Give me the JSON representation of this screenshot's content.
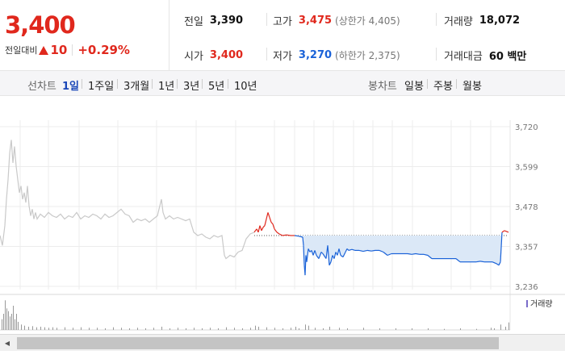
{
  "summary": {
    "price": "3,400",
    "change_label": "전일대비",
    "change_amount": "10",
    "change_percent": "+0.29%",
    "prev_close": {
      "label": "전일",
      "value": "3,390"
    },
    "open": {
      "label": "시가",
      "value": "3,400"
    },
    "high": {
      "label": "고가",
      "value": "3,475",
      "sub": "(상한가 4,405)"
    },
    "low": {
      "label": "저가",
      "value": "3,270",
      "sub": "(하한가 2,375)"
    },
    "volume": {
      "label": "거래량",
      "value": "18,072"
    },
    "amount": {
      "label": "거래대금",
      "value": "60 백만"
    }
  },
  "period_bar": {
    "line_label": "선차트",
    "line_periods": [
      "1일",
      "1주일",
      "3개월",
      "1년",
      "3년",
      "5년",
      "10년"
    ],
    "active": "1일",
    "candle_label": "봉차트",
    "candle_periods": [
      "일봉",
      "주봉",
      "월봉"
    ]
  },
  "colors": {
    "up": "#e0281d",
    "down": "#1a62d8",
    "prev_day_line": "#c9c9c9",
    "down_fill": "#dbe8f7"
  },
  "chart_data": {
    "type": "line",
    "y_ticks": [
      "3,720",
      "3,599",
      "3,478",
      "3,357",
      "3,236"
    ],
    "ylim": [
      3236,
      3720
    ],
    "reference_price": 3390,
    "grid": true,
    "legend": "거래량",
    "prev_day_series": [
      [
        0,
        3390
      ],
      [
        3,
        3360
      ],
      [
        6,
        3420
      ],
      [
        8,
        3500
      ],
      [
        10,
        3560
      ],
      [
        12,
        3640
      ],
      [
        14,
        3680
      ],
      [
        16,
        3610
      ],
      [
        18,
        3660
      ],
      [
        20,
        3600
      ],
      [
        22,
        3560
      ],
      [
        24,
        3520
      ],
      [
        26,
        3540
      ],
      [
        28,
        3500
      ],
      [
        30,
        3520
      ],
      [
        32,
        3490
      ],
      [
        34,
        3540
      ],
      [
        36,
        3480
      ],
      [
        38,
        3450
      ],
      [
        40,
        3470
      ],
      [
        42,
        3440
      ],
      [
        44,
        3460
      ],
      [
        46,
        3440
      ],
      [
        50,
        3455
      ],
      [
        55,
        3445
      ],
      [
        60,
        3460
      ],
      [
        65,
        3450
      ],
      [
        70,
        3445
      ],
      [
        75,
        3455
      ],
      [
        80,
        3440
      ],
      [
        85,
        3450
      ],
      [
        90,
        3445
      ],
      [
        95,
        3460
      ],
      [
        100,
        3440
      ],
      [
        105,
        3450
      ],
      [
        110,
        3445
      ],
      [
        115,
        3455
      ],
      [
        120,
        3450
      ],
      [
        125,
        3440
      ],
      [
        130,
        3455
      ],
      [
        135,
        3445
      ],
      [
        140,
        3450
      ],
      [
        145,
        3460
      ],
      [
        150,
        3470
      ],
      [
        155,
        3455
      ],
      [
        160,
        3450
      ],
      [
        165,
        3430
      ],
      [
        170,
        3440
      ],
      [
        175,
        3435
      ],
      [
        180,
        3440
      ],
      [
        185,
        3430
      ],
      [
        190,
        3440
      ],
      [
        195,
        3450
      ],
      [
        198,
        3480
      ],
      [
        200,
        3500
      ],
      [
        202,
        3460
      ],
      [
        205,
        3440
      ],
      [
        210,
        3450
      ],
      [
        215,
        3440
      ],
      [
        220,
        3445
      ],
      [
        225,
        3440
      ],
      [
        230,
        3435
      ],
      [
        235,
        3440
      ],
      [
        240,
        3400
      ],
      [
        245,
        3390
      ],
      [
        250,
        3395
      ],
      [
        255,
        3385
      ],
      [
        260,
        3380
      ],
      [
        265,
        3390
      ],
      [
        270,
        3385
      ],
      [
        275,
        3390
      ],
      [
        278,
        3330
      ],
      [
        280,
        3320
      ],
      [
        285,
        3330
      ],
      [
        290,
        3325
      ],
      [
        295,
        3340
      ],
      [
        300,
        3345
      ],
      [
        305,
        3380
      ],
      [
        310,
        3395
      ],
      [
        315,
        3400
      ]
    ],
    "today_series": [
      [
        315,
        3400
      ],
      [
        318,
        3410
      ],
      [
        320,
        3400
      ],
      [
        322,
        3420
      ],
      [
        324,
        3405
      ],
      [
        326,
        3415
      ],
      [
        328,
        3420
      ],
      [
        330,
        3440
      ],
      [
        332,
        3460
      ],
      [
        334,
        3445
      ],
      [
        336,
        3430
      ],
      [
        338,
        3425
      ],
      [
        340,
        3410
      ],
      [
        343,
        3400
      ],
      [
        346,
        3395
      ],
      [
        350,
        3390
      ],
      [
        355,
        3392
      ],
      [
        360,
        3390
      ],
      [
        365,
        3390
      ],
      [
        370,
        3388
      ],
      [
        375,
        3385
      ],
      [
        376,
        3360
      ],
      [
        377,
        3300
      ],
      [
        378,
        3270
      ],
      [
        379,
        3330
      ],
      [
        380,
        3310
      ],
      [
        382,
        3350
      ],
      [
        384,
        3340
      ],
      [
        386,
        3345
      ],
      [
        388,
        3330
      ],
      [
        390,
        3345
      ],
      [
        392,
        3330
      ],
      [
        395,
        3320
      ],
      [
        398,
        3340
      ],
      [
        400,
        3335
      ],
      [
        404,
        3320
      ],
      [
        406,
        3360
      ],
      [
        408,
        3300
      ],
      [
        410,
        3310
      ],
      [
        412,
        3330
      ],
      [
        414,
        3320
      ],
      [
        416,
        3340
      ],
      [
        418,
        3330
      ],
      [
        420,
        3350
      ],
      [
        422,
        3330
      ],
      [
        425,
        3325
      ],
      [
        428,
        3340
      ],
      [
        430,
        3350
      ],
      [
        432,
        3345
      ],
      [
        436,
        3348
      ],
      [
        440,
        3345
      ],
      [
        445,
        3345
      ],
      [
        450,
        3342
      ],
      [
        455,
        3345
      ],
      [
        460,
        3343
      ],
      [
        465,
        3345
      ],
      [
        470,
        3345
      ],
      [
        475,
        3340
      ],
      [
        480,
        3330
      ],
      [
        485,
        3335
      ],
      [
        490,
        3335
      ],
      [
        495,
        3335
      ],
      [
        500,
        3335
      ],
      [
        505,
        3335
      ],
      [
        510,
        3333
      ],
      [
        515,
        3335
      ],
      [
        520,
        3333
      ],
      [
        525,
        3333
      ],
      [
        530,
        3330
      ],
      [
        535,
        3320
      ],
      [
        540,
        3320
      ],
      [
        545,
        3320
      ],
      [
        550,
        3320
      ],
      [
        555,
        3320
      ],
      [
        560,
        3320
      ],
      [
        565,
        3320
      ],
      [
        570,
        3310
      ],
      [
        575,
        3310
      ],
      [
        580,
        3310
      ],
      [
        585,
        3310
      ],
      [
        590,
        3310
      ],
      [
        595,
        3312
      ],
      [
        600,
        3310
      ],
      [
        605,
        3310
      ],
      [
        610,
        3310
      ],
      [
        615,
        3305
      ],
      [
        618,
        3300
      ],
      [
        620,
        3310
      ],
      [
        622,
        3400
      ],
      [
        625,
        3405
      ],
      [
        630,
        3400
      ]
    ],
    "volume_series": [
      [
        2,
        20
      ],
      [
        4,
        30
      ],
      [
        6,
        55
      ],
      [
        8,
        40
      ],
      [
        10,
        35
      ],
      [
        12,
        25
      ],
      [
        14,
        30
      ],
      [
        16,
        45
      ],
      [
        18,
        20
      ],
      [
        20,
        30
      ],
      [
        22,
        15
      ],
      [
        26,
        10
      ],
      [
        30,
        8
      ],
      [
        35,
        6
      ],
      [
        40,
        7
      ],
      [
        45,
        5
      ],
      [
        50,
        6
      ],
      [
        55,
        5
      ],
      [
        60,
        4
      ],
      [
        65,
        5
      ],
      [
        70,
        4
      ],
      [
        80,
        5
      ],
      [
        90,
        4
      ],
      [
        100,
        5
      ],
      [
        110,
        4
      ],
      [
        120,
        4
      ],
      [
        130,
        3
      ],
      [
        140,
        5
      ],
      [
        150,
        4
      ],
      [
        160,
        3
      ],
      [
        170,
        4
      ],
      [
        180,
        3
      ],
      [
        190,
        4
      ],
      [
        200,
        6
      ],
      [
        210,
        3
      ],
      [
        220,
        4
      ],
      [
        230,
        3
      ],
      [
        240,
        4
      ],
      [
        250,
        3
      ],
      [
        260,
        4
      ],
      [
        270,
        3
      ],
      [
        280,
        5
      ],
      [
        290,
        4
      ],
      [
        300,
        3
      ],
      [
        310,
        4
      ],
      [
        316,
        8
      ],
      [
        320,
        6
      ],
      [
        330,
        5
      ],
      [
        340,
        4
      ],
      [
        350,
        3
      ],
      [
        360,
        4
      ],
      [
        366,
        6
      ],
      [
        370,
        3
      ],
      [
        378,
        10
      ],
      [
        382,
        8
      ],
      [
        390,
        4
      ],
      [
        400,
        3
      ],
      [
        408,
        6
      ],
      [
        420,
        4
      ],
      [
        430,
        3
      ],
      [
        450,
        4
      ],
      [
        470,
        3
      ],
      [
        490,
        3
      ],
      [
        510,
        3
      ],
      [
        530,
        3
      ],
      [
        550,
        2
      ],
      [
        570,
        3
      ],
      [
        590,
        2
      ],
      [
        608,
        4
      ],
      [
        612,
        3
      ],
      [
        620,
        10
      ],
      [
        626,
        6
      ],
      [
        630,
        14
      ]
    ]
  }
}
